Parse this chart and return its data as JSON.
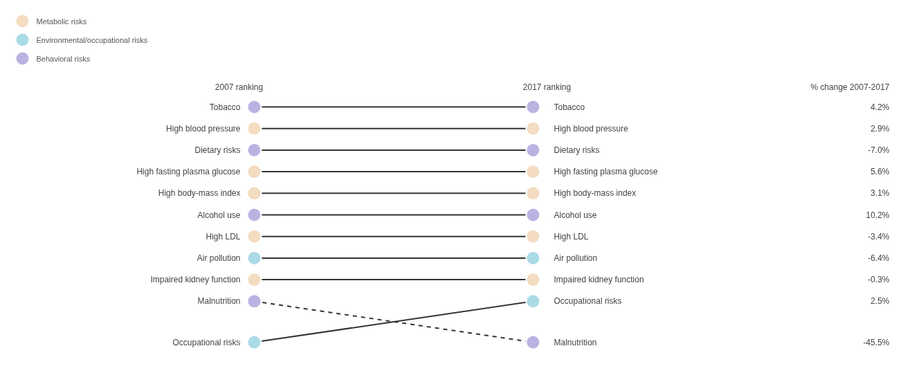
{
  "chart_data": {
    "type": "other",
    "categories": [
      "Tobacco",
      "High blood pressure",
      "Dietary risks",
      "High fasting plasma glucose",
      "High body-mass index",
      "Alcohol use",
      "High LDL",
      "Air pollution",
      "Impaired kidney function",
      "Occupational risks",
      "Malnutrition"
    ],
    "y_categories": [
      "Tobacco",
      "High blood pressure",
      "Dietary risks",
      "High fasting plasma glucose",
      "High body-mass index",
      "Alcohol use",
      "High LDL",
      "Air pollution",
      "Impaired kidney function",
      "Malnutrition",
      "Occupational risks"
    ],
    "series": [
      {
        "name": "Metabolic risks",
        "color": "#f3dcc0",
        "values": [
          null,
          2.9,
          null,
          5.6,
          3.1,
          null,
          -3.4,
          null,
          -0.3,
          null,
          null
        ],
        "value_labels": [
          null,
          "2.9%",
          null,
          "5.6%",
          "3.1%",
          null,
          "-3.4%",
          null,
          "-0.3%",
          null,
          null
        ]
      },
      {
        "name": "Environmental/occupational risks",
        "color": "#aadbe6",
        "values": [
          null,
          null,
          null,
          null,
          null,
          null,
          null,
          -6.4,
          null,
          2.5,
          null
        ],
        "value_labels": [
          null,
          null,
          null,
          null,
          null,
          null,
          null,
          "-6.4%",
          null,
          "2.5%",
          null
        ]
      },
      {
        "name": "Behavioral risks",
        "color": "#bcb2e2",
        "values": [
          4.2,
          null,
          -7.0,
          null,
          null,
          10.2,
          null,
          null,
          null,
          null,
          -45.5
        ],
        "value_labels": [
          "4.2%",
          null,
          "-7.0%",
          null,
          null,
          "10.2%",
          null,
          null,
          null,
          null,
          "-45.5%"
        ]
      }
    ],
    "annotations": [
      "2007 ranking",
      "2017 ranking",
      "% change 2007-2017"
    ],
    "legend": "top left",
    "data_labels": true
  }
}
